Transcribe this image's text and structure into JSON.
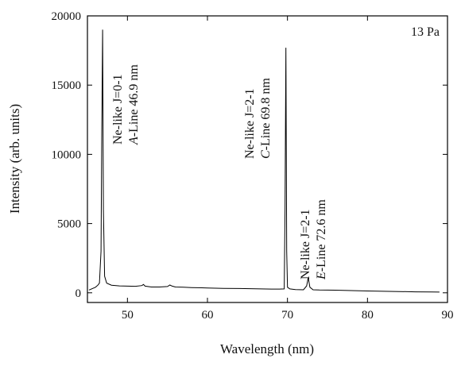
{
  "chart_data": {
    "type": "line",
    "title": "",
    "xlabel": "Wavelength (nm)",
    "ylabel": "Intensity (arb. units)",
    "xlim": [
      45,
      90
    ],
    "ylim": [
      -700,
      20000
    ],
    "x_ticks": [
      50,
      60,
      70,
      80,
      90
    ],
    "y_ticks": [
      0,
      5000,
      10000,
      15000,
      20000
    ],
    "x_tick_labels": [
      "50",
      "60",
      "70",
      "80",
      "90"
    ],
    "y_tick_labels": [
      "0",
      "5000",
      "10000",
      "15000",
      "20000"
    ],
    "grid": false,
    "legend": "none",
    "pressure_label": "13 Pa",
    "line_color": "#000000",
    "series": [
      {
        "x": [
          45.2,
          46.0,
          46.3,
          46.5,
          46.7,
          46.8,
          46.9,
          47.0,
          47.15,
          47.4,
          48.0,
          49.0,
          50.0,
          51.0,
          51.8,
          52.0,
          52.2,
          53.0,
          54.0,
          55.0,
          55.3,
          55.6,
          56.0,
          57.0,
          58.0,
          60.0,
          62.0,
          64.0,
          66.0,
          68.0,
          69.0,
          69.6,
          69.7,
          69.8,
          69.9,
          70.0,
          70.3,
          71.0,
          72.0,
          72.4,
          72.6,
          72.8,
          73.2,
          74.0,
          76.0,
          78.0,
          80.0,
          82.0,
          84.0,
          86.0,
          88.0,
          89.0
        ],
        "y": [
          200,
          400,
          550,
          700,
          3000,
          12000,
          19000,
          6000,
          1200,
          700,
          550,
          500,
          480,
          470,
          520,
          600,
          480,
          420,
          420,
          450,
          560,
          480,
          420,
          400,
          380,
          350,
          320,
          310,
          290,
          270,
          270,
          280,
          6000,
          17700,
          3000,
          400,
          280,
          230,
          220,
          500,
          1100,
          400,
          220,
          200,
          190,
          160,
          130,
          110,
          90,
          70,
          60,
          50
        ]
      }
    ],
    "annotations": [
      {
        "lines": [
          "Ne-like J=0-1",
          "A-Line 46.9 nm"
        ],
        "peak_x": 46.9,
        "peak_y": 19000
      },
      {
        "lines": [
          "Ne-like J=2-1",
          "C-Line 69.8 nm"
        ],
        "peak_x": 69.8,
        "peak_y": 17700
      },
      {
        "lines": [
          "Ne-like J=2-1",
          "E-Line 72.6 nm"
        ],
        "peak_x": 72.6,
        "peak_y": 1100
      }
    ]
  }
}
